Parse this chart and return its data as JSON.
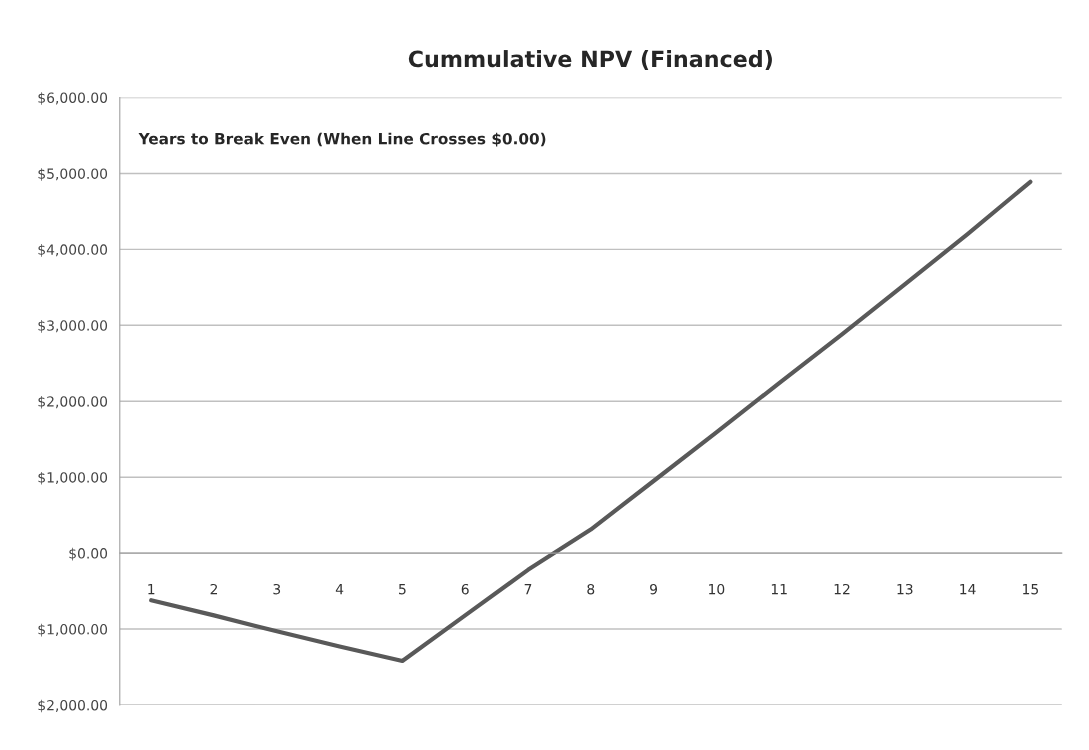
{
  "chart_data": {
    "type": "line",
    "title": "Cummulative NPV (Financed)",
    "annotations": [
      "Years to Break Even (When Line Crosses $0.00)"
    ],
    "categories": [
      "1",
      "2",
      "3",
      "4",
      "5",
      "6",
      "7",
      "8",
      "9",
      "10",
      "11",
      "12",
      "13",
      "14",
      "15"
    ],
    "series": [
      {
        "color": "#595959",
        "values": [
          -620,
          -820,
          -1030,
          -1230,
          -1420,
          -820,
          -220,
          310,
          950,
          1590,
          2240,
          2880,
          3540,
          4200,
          4890
        ]
      }
    ],
    "ylim": [
      -2000,
      6000
    ],
    "yticks": [
      {
        "value": -2000,
        "label": "$2,000.00"
      },
      {
        "value": -1000,
        "label": "$1,000.00"
      },
      {
        "value": 0,
        "label": "$0.00"
      },
      {
        "value": 1000,
        "label": "$1,000.00"
      },
      {
        "value": 2000,
        "label": "$2,000.00"
      },
      {
        "value": 3000,
        "label": "$3,000.00"
      },
      {
        "value": 4000,
        "label": "$4,000.00"
      },
      {
        "value": 5000,
        "label": "$5,000.00"
      },
      {
        "value": 6000,
        "label": "$6,000.00"
      }
    ],
    "grid": "y",
    "marker": "none",
    "line_style": "solid"
  }
}
